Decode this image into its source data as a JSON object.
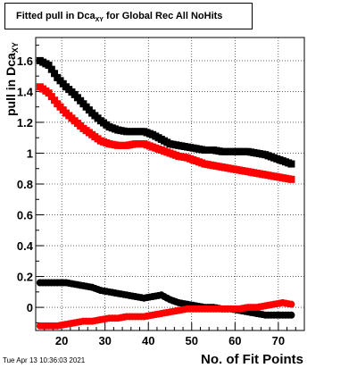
{
  "title": {
    "main": "Fitted pull in Dca",
    "sub": "XY",
    "rest": " for Global Rec All NoHits"
  },
  "ylabel": {
    "main": "pull in Dca",
    "sub": "XY"
  },
  "xlabel": "No. of Fit Points",
  "timestamp": "Tue Apr 13 10:36:03 2021",
  "chart_data": {
    "type": "scatter",
    "xlim": [
      14,
      76
    ],
    "ylim": [
      -0.15,
      1.75
    ],
    "xticks": [
      20,
      30,
      40,
      50,
      60,
      70
    ],
    "yticks": [
      0,
      0.2,
      0.4,
      0.6,
      0.8,
      1,
      1.2,
      1.4,
      1.6
    ],
    "ytick_labels": [
      "0",
      "0.2",
      "0.4",
      "0.6",
      "0.8",
      "1",
      "1.2",
      "1.4",
      "1.6"
    ],
    "grid": true,
    "series": [
      {
        "color": "#000000",
        "marker": "square",
        "points": [
          [
            15,
            1.6
          ],
          [
            17,
            1.57
          ],
          [
            19,
            1.49
          ],
          [
            21,
            1.43
          ],
          [
            23,
            1.38
          ],
          [
            25,
            1.32
          ],
          [
            27,
            1.26
          ],
          [
            29,
            1.21
          ],
          [
            31,
            1.17
          ],
          [
            33,
            1.15
          ],
          [
            35,
            1.14
          ],
          [
            37,
            1.14
          ],
          [
            39,
            1.14
          ],
          [
            41,
            1.12
          ],
          [
            43,
            1.09
          ],
          [
            45,
            1.06
          ],
          [
            47,
            1.05
          ],
          [
            49,
            1.04
          ],
          [
            51,
            1.03
          ],
          [
            53,
            1.02
          ],
          [
            55,
            1.02
          ],
          [
            57,
            1.01
          ],
          [
            59,
            1.01
          ],
          [
            61,
            1.01
          ],
          [
            63,
            1.01
          ],
          [
            65,
            1.0
          ],
          [
            67,
            0.99
          ],
          [
            69,
            0.97
          ],
          [
            71,
            0.95
          ],
          [
            73,
            0.93
          ]
        ]
      },
      {
        "color": "#ff0000",
        "marker": "square",
        "points": [
          [
            15,
            1.43
          ],
          [
            17,
            1.39
          ],
          [
            19,
            1.32
          ],
          [
            21,
            1.26
          ],
          [
            23,
            1.21
          ],
          [
            25,
            1.16
          ],
          [
            27,
            1.12
          ],
          [
            29,
            1.08
          ],
          [
            31,
            1.06
          ],
          [
            33,
            1.05
          ],
          [
            35,
            1.05
          ],
          [
            37,
            1.06
          ],
          [
            39,
            1.06
          ],
          [
            41,
            1.04
          ],
          [
            43,
            1.02
          ],
          [
            45,
            1.0
          ],
          [
            47,
            0.98
          ],
          [
            49,
            0.97
          ],
          [
            51,
            0.95
          ],
          [
            53,
            0.93
          ],
          [
            55,
            0.92
          ],
          [
            57,
            0.91
          ],
          [
            59,
            0.9
          ],
          [
            61,
            0.89
          ],
          [
            63,
            0.88
          ],
          [
            65,
            0.87
          ],
          [
            67,
            0.86
          ],
          [
            69,
            0.85
          ],
          [
            71,
            0.84
          ],
          [
            73,
            0.83
          ]
        ]
      },
      {
        "color": "#000000",
        "marker": "circle",
        "points": [
          [
            15,
            0.16
          ],
          [
            17,
            0.16
          ],
          [
            19,
            0.16
          ],
          [
            21,
            0.16
          ],
          [
            23,
            0.15
          ],
          [
            25,
            0.14
          ],
          [
            27,
            0.13
          ],
          [
            29,
            0.11
          ],
          [
            31,
            0.1
          ],
          [
            33,
            0.09
          ],
          [
            35,
            0.08
          ],
          [
            37,
            0.07
          ],
          [
            39,
            0.06
          ],
          [
            41,
            0.07
          ],
          [
            43,
            0.08
          ],
          [
            45,
            0.05
          ],
          [
            47,
            0.03
          ],
          [
            49,
            0.02
          ],
          [
            51,
            0.01
          ],
          [
            53,
            0.0
          ],
          [
            55,
            0.0
          ],
          [
            57,
            -0.01
          ],
          [
            59,
            -0.01
          ],
          [
            61,
            -0.02
          ],
          [
            63,
            -0.03
          ],
          [
            65,
            -0.04
          ],
          [
            67,
            -0.05
          ],
          [
            69,
            -0.05
          ],
          [
            71,
            -0.05
          ],
          [
            73,
            -0.05
          ]
        ]
      },
      {
        "color": "#ff0000",
        "marker": "circle",
        "points": [
          [
            15,
            -0.12
          ],
          [
            17,
            -0.12
          ],
          [
            19,
            -0.12
          ],
          [
            21,
            -0.11
          ],
          [
            23,
            -0.1
          ],
          [
            25,
            -0.09
          ],
          [
            27,
            -0.09
          ],
          [
            29,
            -0.08
          ],
          [
            31,
            -0.07
          ],
          [
            33,
            -0.07
          ],
          [
            35,
            -0.06
          ],
          [
            37,
            -0.06
          ],
          [
            39,
            -0.06
          ],
          [
            41,
            -0.05
          ],
          [
            43,
            -0.04
          ],
          [
            45,
            -0.03
          ],
          [
            47,
            -0.02
          ],
          [
            49,
            -0.01
          ],
          [
            51,
            -0.01
          ],
          [
            53,
            -0.01
          ],
          [
            55,
            -0.01
          ],
          [
            57,
            -0.01
          ],
          [
            59,
            -0.01
          ],
          [
            61,
            -0.01
          ],
          [
            63,
            0.0
          ],
          [
            65,
            0.0
          ],
          [
            67,
            0.01
          ],
          [
            69,
            0.02
          ],
          [
            71,
            0.03
          ],
          [
            73,
            0.02
          ]
        ]
      }
    ]
  }
}
